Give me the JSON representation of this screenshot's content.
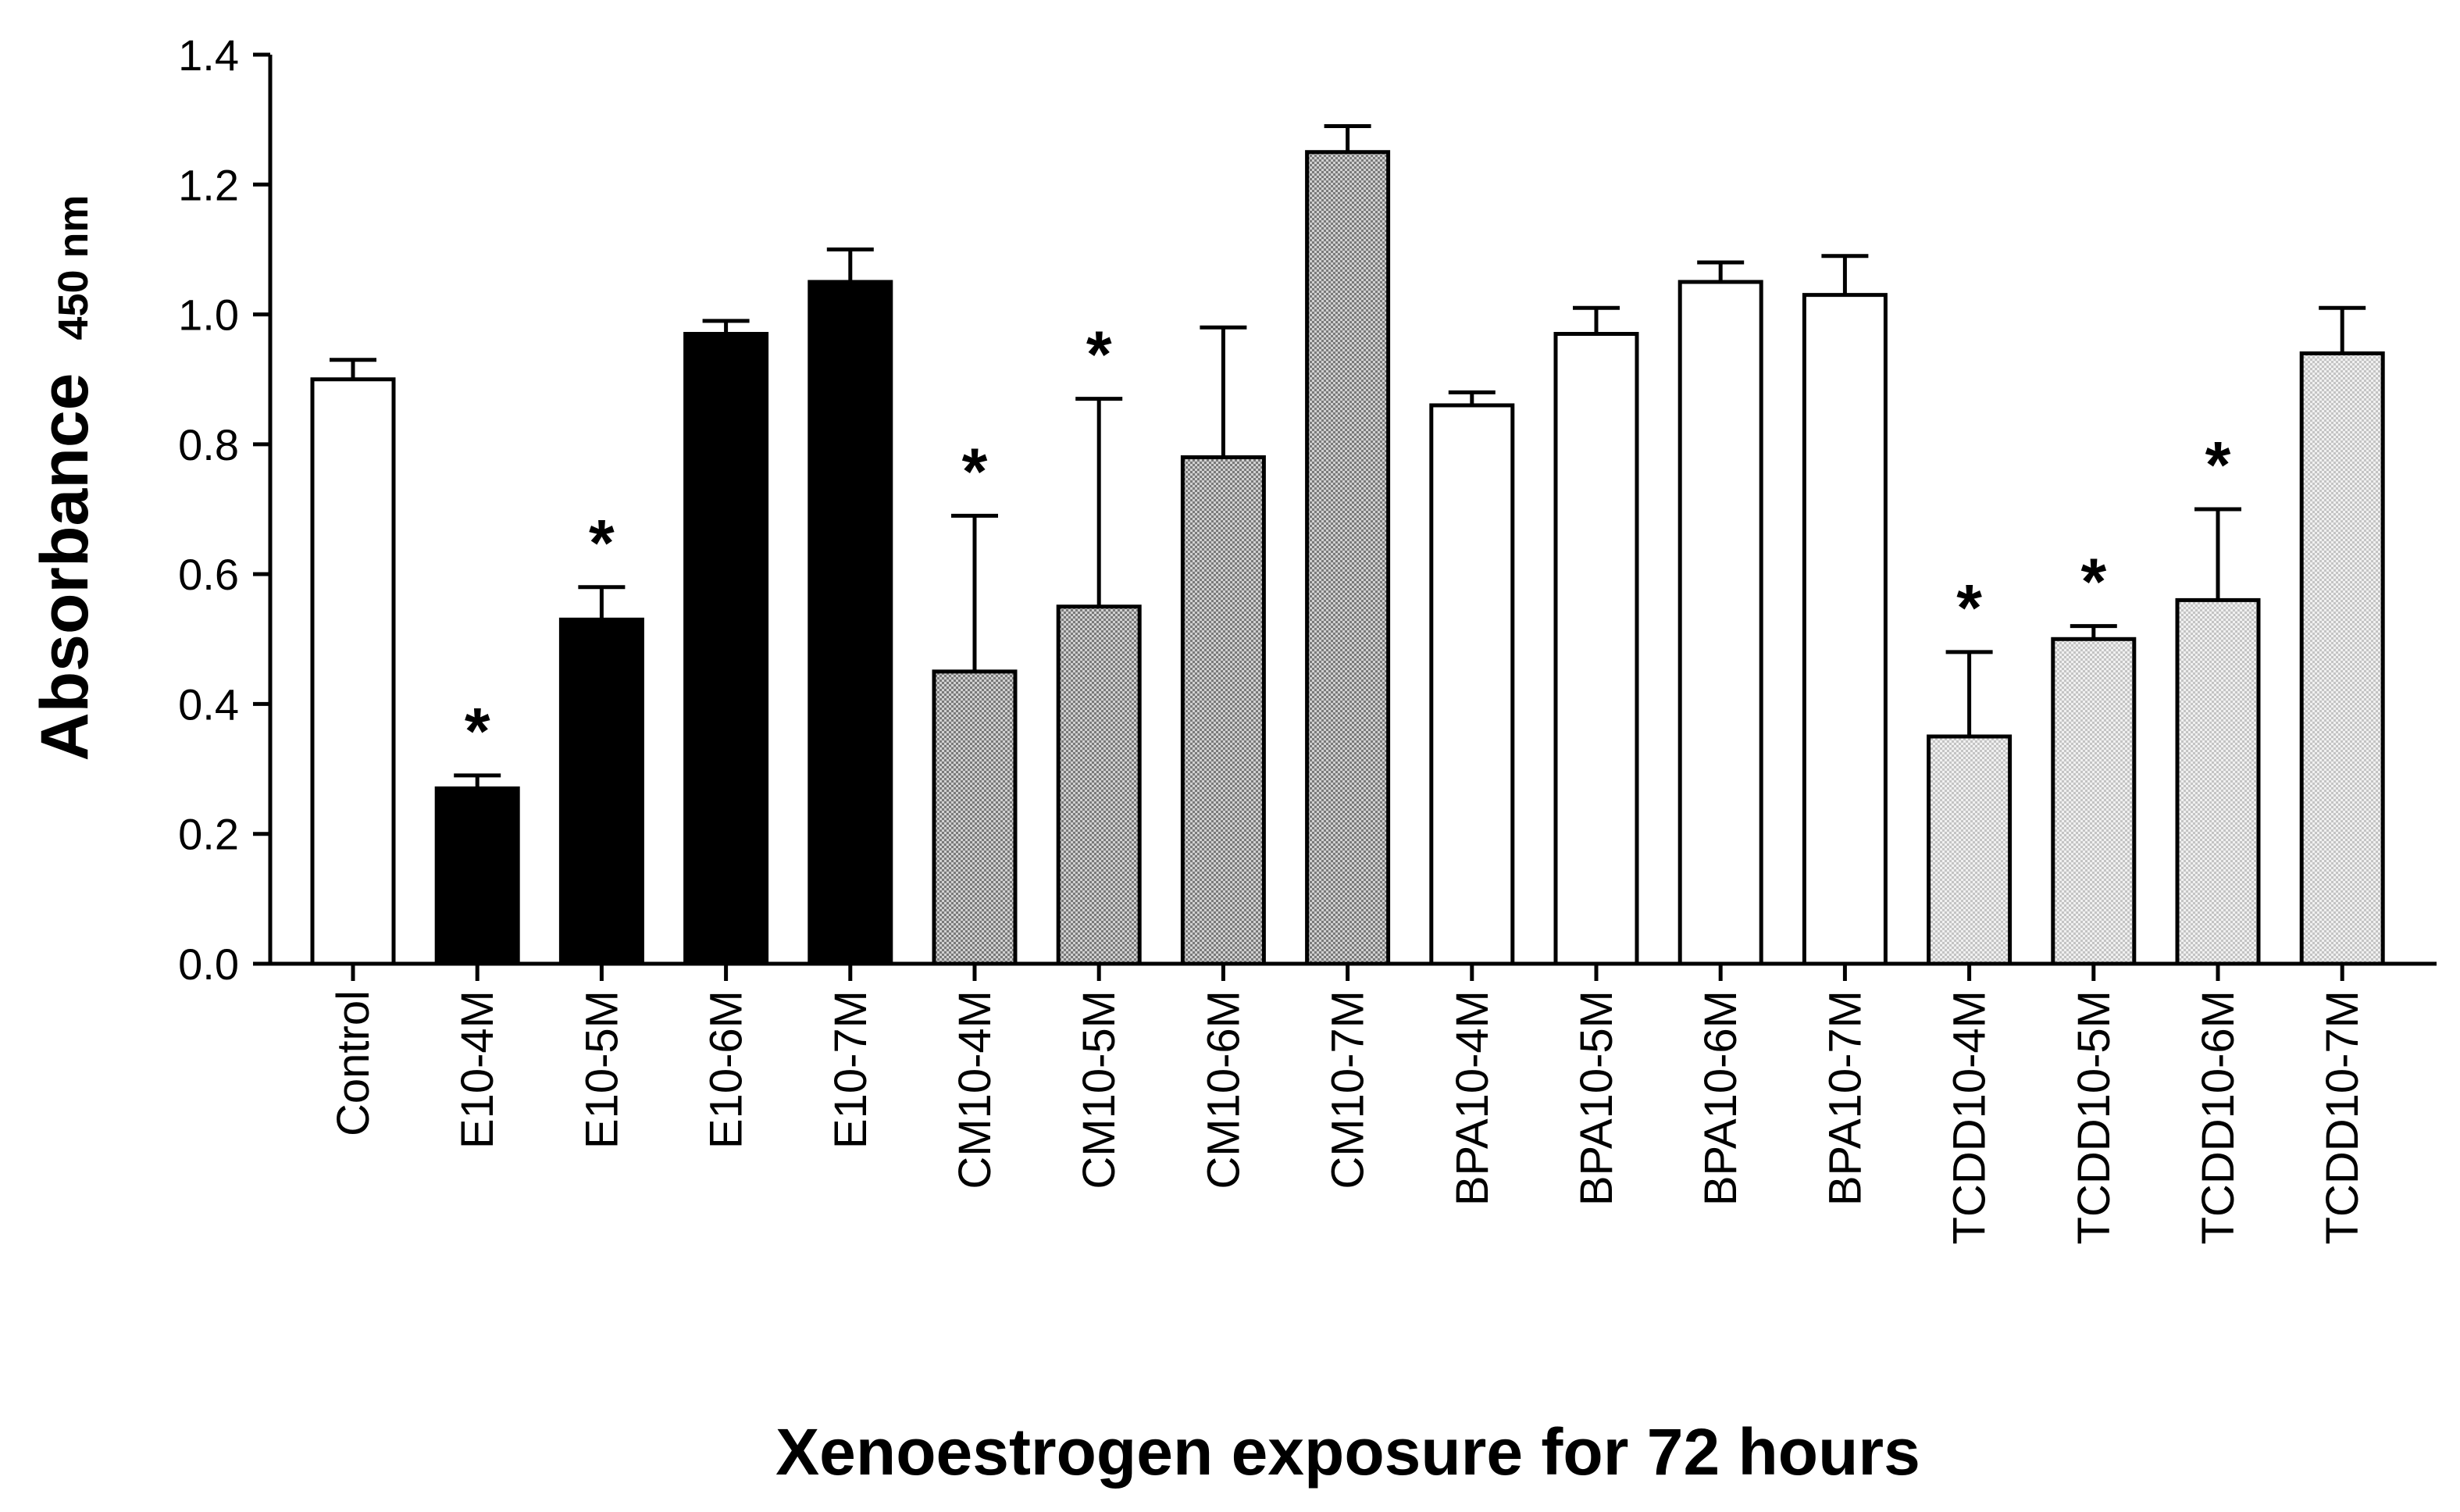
{
  "chart_data": {
    "type": "bar",
    "title": "",
    "xlabel": "Xenoestrogen exposure for 72 hours",
    "ylabel": "Absorbance",
    "ylabel_subscript": "450 nm",
    "ylim": [
      0.0,
      1.4
    ],
    "yticks": [
      "0.0",
      "0.2",
      "0.4",
      "0.6",
      "0.8",
      "1.0",
      "1.2",
      "1.4"
    ],
    "grid": false,
    "legend": "none",
    "significance_marker": "*",
    "categories": [
      "Control",
      "E10-4M",
      "E10-5M",
      "E10-6M",
      "E10-7M",
      "CM10-4M",
      "CM10-5M",
      "CM10-6M",
      "CM10-7M",
      "BPA10-4M",
      "BPA10-5M",
      "BPA10-6M",
      "BPA10-7M",
      "TCDD10-4M",
      "TCDD10-5M",
      "TCDD10-6M",
      "TCDD10-7M"
    ],
    "values": [
      0.9,
      0.27,
      0.53,
      0.97,
      1.05,
      0.45,
      0.55,
      0.78,
      1.25,
      0.86,
      0.97,
      1.05,
      1.03,
      0.35,
      0.5,
      0.56,
      0.94
    ],
    "error_upper": [
      0.03,
      0.02,
      0.05,
      0.02,
      0.05,
      0.24,
      0.32,
      0.2,
      0.04,
      0.02,
      0.04,
      0.03,
      0.06,
      0.13,
      0.02,
      0.14,
      0.07
    ],
    "significant": [
      false,
      true,
      true,
      false,
      false,
      true,
      true,
      false,
      false,
      false,
      false,
      false,
      false,
      true,
      true,
      true,
      false
    ],
    "fill_patterns": [
      "white",
      "black",
      "black",
      "black",
      "black",
      "dense-stipple",
      "dense-stipple",
      "dense-stipple",
      "dense-stipple",
      "white",
      "white",
      "white",
      "white",
      "light-stipple",
      "light-stipple",
      "light-stipple",
      "light-stipple"
    ]
  }
}
